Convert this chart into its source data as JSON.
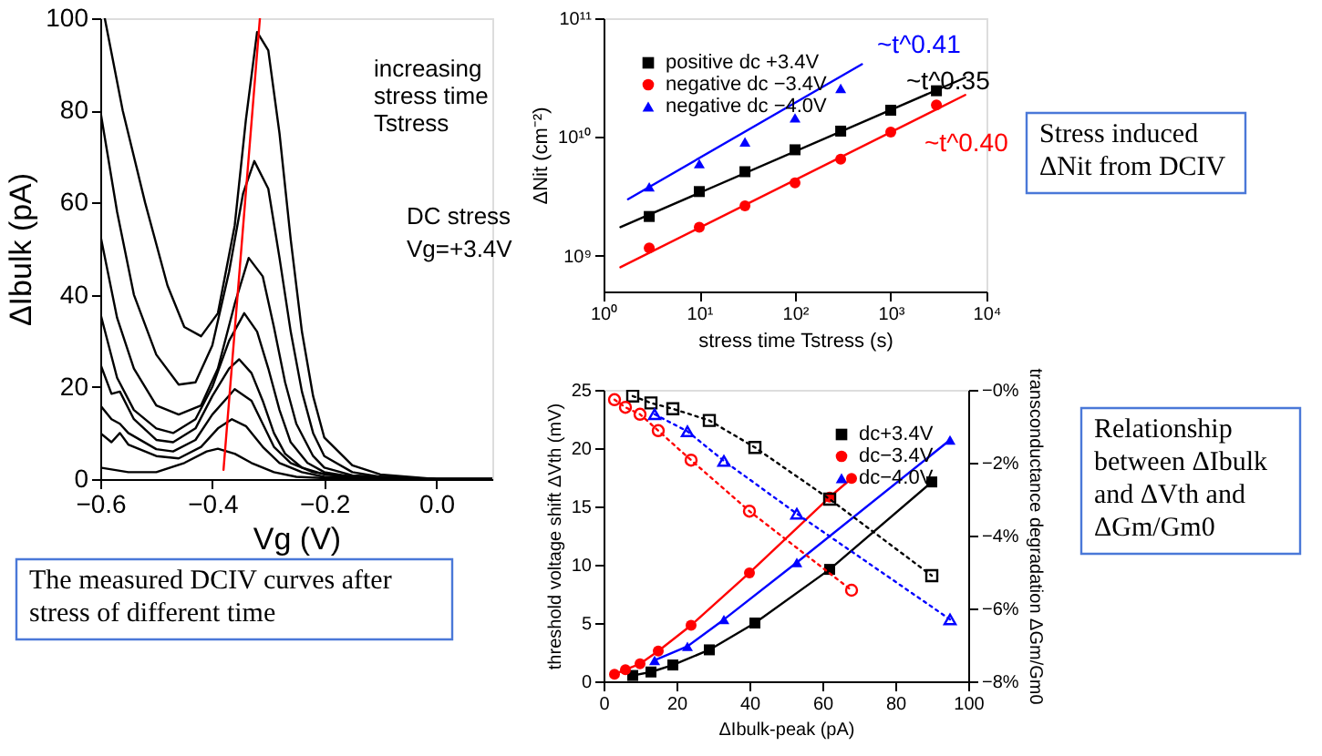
{
  "chart_data": [
    {
      "type": "line",
      "xlabel": "Vg (V)",
      "ylabel": "ΔIbulk (pA)",
      "xlim": [
        -0.6,
        0.1
      ],
      "ylim": [
        0,
        100
      ],
      "xticks": [
        {
          "value": -0.6,
          "label": "−0.6"
        },
        {
          "value": -0.4,
          "label": "−0.4"
        },
        {
          "value": -0.2,
          "label": "−0.2"
        },
        {
          "value": 0,
          "label": "0.0"
        }
      ],
      "yticks": [
        0,
        20,
        40,
        60,
        80,
        100
      ],
      "grid": false,
      "legend": false,
      "marker": "none",
      "line_style": "solid",
      "annotations": [
        "increasing stress time Tstress",
        "DC stress",
        "Vg=+3.4V",
        "The measured DCIV curves after stress of different time"
      ],
      "series": [
        {
          "color": "#000000",
          "x": [
            -0.6,
            -0.55,
            -0.5,
            -0.45,
            -0.41,
            -0.39,
            -0.36,
            -0.33,
            -0.29,
            -0.25,
            -0.2,
            0,
            0.1
          ],
          "values": [
            2.5,
            1.5,
            1.5,
            3.5,
            6,
            6.6,
            5.5,
            3.5,
            1.5,
            0.5,
            0.2,
            0,
            0
          ]
        },
        {
          "color": "#000000",
          "x": [
            -0.6,
            -0.58,
            -0.565,
            -0.55,
            -0.5,
            -0.46,
            -0.42,
            -0.39,
            -0.365,
            -0.34,
            -0.31,
            -0.28,
            -0.24,
            -0.2,
            0,
            0.1
          ],
          "values": [
            10,
            8,
            10,
            7.5,
            5,
            4.5,
            7,
            11,
            13,
            11.5,
            7,
            3.5,
            1.5,
            0.5,
            0,
            0
          ]
        },
        {
          "color": "#000000",
          "x": [
            -0.6,
            -0.58,
            -0.565,
            -0.55,
            -0.5,
            -0.47,
            -0.43,
            -0.4,
            -0.36,
            -0.33,
            -0.31,
            -0.29,
            -0.26,
            -0.22,
            -0.15,
            0,
            0.1
          ],
          "values": [
            16,
            13,
            12,
            10,
            6.5,
            6,
            8.5,
            14,
            19.5,
            17,
            12,
            7,
            3.5,
            1.5,
            0.3,
            0,
            0
          ]
        },
        {
          "color": "#000000",
          "x": [
            -0.6,
            -0.58,
            -0.565,
            -0.54,
            -0.5,
            -0.47,
            -0.43,
            -0.4,
            -0.37,
            -0.352,
            -0.33,
            -0.31,
            -0.29,
            -0.27,
            -0.24,
            -0.2,
            -0.1,
            0,
            0.1
          ],
          "values": [
            25,
            18.5,
            19,
            13,
            8.5,
            8,
            11,
            18,
            24,
            26,
            23,
            17,
            10,
            5.5,
            2.5,
            1,
            0.2,
            0,
            0
          ]
        },
        {
          "color": "#000000",
          "x": [
            -0.6,
            -0.57,
            -0.54,
            -0.5,
            -0.47,
            -0.43,
            -0.4,
            -0.37,
            -0.343,
            -0.32,
            -0.3,
            -0.28,
            -0.26,
            -0.23,
            -0.2,
            -0.15,
            0,
            0.1
          ],
          "values": [
            36,
            22,
            15,
            11,
            10,
            13,
            20,
            30,
            36,
            32,
            24,
            15,
            8,
            3.5,
            1.5,
            0.5,
            0,
            0
          ]
        },
        {
          "color": "#000000",
          "x": [
            -0.6,
            -0.57,
            -0.54,
            -0.5,
            -0.46,
            -0.42,
            -0.39,
            -0.36,
            -0.335,
            -0.31,
            -0.29,
            -0.27,
            -0.25,
            -0.22,
            -0.2,
            -0.15,
            0,
            0.1
          ],
          "values": [
            53,
            35,
            24,
            16,
            14,
            16,
            24,
            38,
            48,
            44,
            33,
            21,
            12,
            5,
            2.5,
            0.8,
            0,
            0
          ]
        },
        {
          "color": "#000000",
          "x": [
            -0.6,
            -0.57,
            -0.54,
            -0.5,
            -0.46,
            -0.43,
            -0.4,
            -0.37,
            -0.345,
            -0.325,
            -0.3,
            -0.28,
            -0.26,
            -0.24,
            -0.22,
            -0.2,
            -0.15,
            -0.1,
            0,
            0.1
          ],
          "values": [
            80,
            58,
            40,
            27,
            20.5,
            21,
            29,
            45,
            62,
            69,
            63,
            48,
            32,
            19,
            10,
            5,
            1.5,
            0.5,
            0,
            0
          ]
        },
        {
          "color": "#000000",
          "x": [
            -0.592,
            -0.56,
            -0.52,
            -0.48,
            -0.45,
            -0.42,
            -0.39,
            -0.36,
            -0.34,
            -0.32,
            -0.3,
            -0.28,
            -0.26,
            -0.24,
            -0.22,
            -0.2,
            -0.15,
            -0.1,
            0,
            0.1
          ],
          "values": [
            100,
            80,
            60,
            42,
            33,
            31,
            36,
            55,
            78,
            97,
            93,
            75,
            52,
            32,
            18,
            9,
            3,
            1,
            0,
            0
          ]
        },
        {
          "color": "#ff0000",
          "x": [
            -0.38,
            -0.315
          ],
          "values": [
            2,
            100
          ]
        }
      ]
    },
    {
      "type": "scatter",
      "xlabel": "stress time Tstress (s)",
      "ylabel": "ΔNit (cm⁻²)",
      "log": "xy",
      "xlim": [
        1,
        10000
      ],
      "ylim": [
        500000000,
        100000000000
      ],
      "xticks": [
        {
          "value": 1,
          "label": "10⁰"
        },
        {
          "value": 10,
          "label": "10¹"
        },
        {
          "value": 100,
          "label": "10²"
        },
        {
          "value": 1000,
          "label": "10³"
        },
        {
          "value": 10000,
          "label": "10⁴"
        }
      ],
      "yticks": [
        {
          "value": 1000000000,
          "label": "10⁹"
        },
        {
          "value": 10000000000,
          "label": "10¹⁰"
        },
        {
          "value": 100000000000,
          "label": "10¹¹"
        }
      ],
      "grid": false,
      "legend": "top left",
      "annotations": [
        "~t^0.41",
        "~t^0.35",
        "~t^0.40",
        "Stress induced ΔNit from DCIV"
      ],
      "series": [
        {
          "name": "positive dc +3.4V",
          "color": "#000000",
          "marker": "square",
          "x": [
            3,
            10,
            30,
            100,
            300,
            1000,
            3000
          ],
          "values": [
            2140000000,
            3470000000,
            5100000000,
            7800000000,
            11200000000,
            16800000000,
            24500000000
          ]
        },
        {
          "name": "negative dc −3.4V",
          "color": "#ff0000",
          "marker": "circle",
          "x": [
            3,
            10,
            30,
            100,
            300,
            1000,
            3000
          ],
          "values": [
            1160000000,
            1740000000,
            2630000000,
            4100000000,
            6500000000,
            11000000000,
            18600000000
          ]
        },
        {
          "name": "negative dc −4.0V",
          "color": "#0000ff",
          "marker": "triangle",
          "x": [
            3,
            10,
            30,
            100,
            300
          ],
          "values": [
            3800000000,
            5960000000,
            9100000000,
            14500000000,
            25700000000
          ]
        },
        {
          "type": "line",
          "color": "#000000",
          "marker": "none",
          "x": [
            1.5,
            6000
          ],
          "values": [
            1740000000,
            31600000000
          ]
        },
        {
          "type": "line",
          "color": "#ff0000",
          "marker": "none",
          "x": [
            1.5,
            6000
          ],
          "values": [
            800000000,
            22600000000
          ]
        },
        {
          "type": "line",
          "color": "#0000ff",
          "marker": "none",
          "x": [
            1.8,
            500
          ],
          "values": [
            2990000000,
            41000000000
          ]
        }
      ]
    },
    {
      "type": "line",
      "xlabel": "ΔIbulk-peak (pA)",
      "ylabel": "threshold voltage shift ΔVth (mV)",
      "y2label": "transconductance degradation ΔGm/Gm0",
      "xlim": [
        0,
        100
      ],
      "ylim": [
        0,
        25
      ],
      "y2lim": [
        -8,
        0
      ],
      "xticks": [
        0,
        20,
        40,
        60,
        80,
        100
      ],
      "yticks": [
        0,
        5,
        10,
        15,
        20,
        25
      ],
      "y2ticks": [
        {
          "value": 0,
          "label": "−0%"
        },
        {
          "value": -2,
          "label": "−2%"
        },
        {
          "value": -4,
          "label": "−4%"
        },
        {
          "value": -6,
          "label": "−6%"
        },
        {
          "value": -8,
          "label": "−8%"
        }
      ],
      "grid": false,
      "legend": "top right",
      "annotations": [
        "Relationship between ΔIbulk and ΔVth and ΔGm/Gm0"
      ],
      "series": [
        {
          "name": "dc+3.4V",
          "color": "#000000",
          "marker": "square",
          "line_style": "solid",
          "x": [
            8,
            13,
            19,
            29,
            41.5,
            62,
            90
          ],
          "values": [
            0.5,
            0.8,
            1.4,
            2.7,
            5.0,
            9.6,
            17.1
          ]
        },
        {
          "name": "dc−3.4V",
          "color": "#ff0000",
          "marker": "circle",
          "line_style": "solid",
          "x": [
            3,
            6,
            10,
            15,
            24,
            40,
            62,
            68
          ],
          "values": [
            0.6,
            1.0,
            1.5,
            2.6,
            4.8,
            9.3,
            15.8,
            17.4
          ]
        },
        {
          "name": "dc−4.0V",
          "color": "#0000ff",
          "marker": "triangle",
          "line_style": "solid",
          "x": [
            14,
            23,
            33,
            53,
            95
          ],
          "values": [
            1.8,
            3.0,
            5.3,
            10.2,
            20.7
          ]
        },
        {
          "axis": "y2",
          "color": "#000000",
          "marker": "square",
          "line_style": "dotted",
          "x": [
            8,
            13,
            19,
            29,
            41.5,
            62,
            90
          ],
          "values": [
            -0.17,
            -0.36,
            -0.52,
            -0.84,
            -1.58,
            -3.0,
            -5.1
          ]
        },
        {
          "axis": "y2",
          "color": "#ff0000",
          "marker": "circle",
          "line_style": "dotted",
          "x": [
            3,
            6,
            10,
            15,
            24,
            40,
            68
          ],
          "values": [
            -0.27,
            -0.48,
            -0.67,
            -1.12,
            -1.93,
            -3.33,
            -5.5
          ]
        },
        {
          "axis": "y2",
          "color": "#0000ff",
          "marker": "triangle",
          "line_style": "dotted",
          "x": [
            14,
            23,
            33,
            53,
            95
          ],
          "values": [
            -0.67,
            -1.14,
            -1.95,
            -3.4,
            -6.3
          ]
        }
      ]
    }
  ]
}
